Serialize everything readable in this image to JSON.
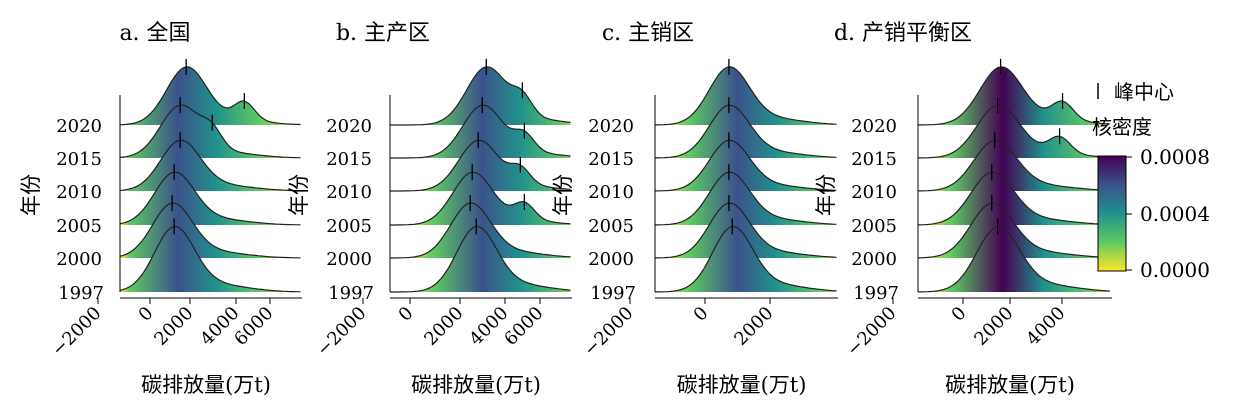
{
  "legend": {
    "peak_label": "峰中心",
    "colorbar_title": "核密度",
    "colorbar_ticks": [
      "0.0008",
      "0.0004",
      "0.0000"
    ],
    "colors": [
      "#fde725",
      "#5ec962",
      "#21918c",
      "#3b528b",
      "#440154"
    ]
  },
  "chart_data": [
    {
      "type": "ridgeline",
      "title": "a. 全国",
      "xlabel": "碳排放量(万t)",
      "ylabel": "年份",
      "xlim": [
        -2000,
        7000
      ],
      "xticks": [
        "−2000",
        "0",
        "2000",
        "4000",
        "6000"
      ],
      "yticks": [
        "1997",
        "2000",
        "2005",
        "2010",
        "2015",
        "2020"
      ],
      "series": [
        {
          "year": "1997",
          "peaks": [
            700
          ]
        },
        {
          "year": "2000",
          "peaks": [
            600
          ]
        },
        {
          "year": "2005",
          "peaks": [
            700
          ]
        },
        {
          "year": "2010",
          "peaks": [
            1000
          ]
        },
        {
          "year": "2015",
          "peaks": [
            1000,
            2600
          ]
        },
        {
          "year": "2020",
          "peaks": [
            1300,
            4200
          ]
        }
      ]
    },
    {
      "type": "ridgeline",
      "title": "b. 主产区",
      "xlabel": "碳排放量(万t)",
      "ylabel": "年份",
      "xlim": [
        -2000,
        7000
      ],
      "xticks": [
        "−2000",
        "0",
        "2000",
        "4000",
        "6000"
      ],
      "yticks": [
        "1997",
        "2000",
        "2005",
        "2010",
        "2015",
        "2020"
      ],
      "series": [
        {
          "year": "1997",
          "peaks": [
            2300
          ]
        },
        {
          "year": "2000",
          "peaks": [
            2000
          ]
        },
        {
          "year": "2005",
          "peaks": [
            2100,
            4700
          ]
        },
        {
          "year": "2010",
          "peaks": [
            2400,
            4500
          ]
        },
        {
          "year": "2015",
          "peaks": [
            2600,
            4700
          ]
        },
        {
          "year": "2020",
          "peaks": [
            2800,
            4600
          ]
        }
      ]
    },
    {
      "type": "ridgeline",
      "title": "c. 主销区",
      "xlabel": "碳排放量(万t)",
      "ylabel": "年份",
      "xlim": [
        -2000,
        3400
      ],
      "xticks": [
        "−2000",
        "0",
        "2000"
      ],
      "yticks": [
        "1997",
        "2000",
        "2005",
        "2010",
        "2015",
        "2020"
      ],
      "series": [
        {
          "year": "1997",
          "peaks": [
            300
          ]
        },
        {
          "year": "2000",
          "peaks": [
            200
          ]
        },
        {
          "year": "2005",
          "peaks": [
            200
          ]
        },
        {
          "year": "2010",
          "peaks": [
            200
          ]
        },
        {
          "year": "2015",
          "peaks": [
            200
          ]
        },
        {
          "year": "2020",
          "peaks": [
            200
          ]
        }
      ]
    },
    {
      "type": "ridgeline",
      "title": "d. 产销平衡区",
      "xlabel": "碳排放量(万t)",
      "ylabel": "年份",
      "xlim": [
        -2000,
        4500
      ],
      "xticks": [
        "−2000",
        "0",
        "2000",
        "4000"
      ],
      "yticks": [
        "1997",
        "2000",
        "2005",
        "2010",
        "2015",
        "2020"
      ],
      "series": [
        {
          "year": "1997",
          "peaks": [
            700
          ]
        },
        {
          "year": "2000",
          "peaks": [
            500
          ]
        },
        {
          "year": "2005",
          "peaks": [
            500
          ]
        },
        {
          "year": "2010",
          "peaks": [
            600
          ]
        },
        {
          "year": "2015",
          "peaks": [
            700,
            2800
          ]
        },
        {
          "year": "2020",
          "peaks": [
            800,
            2900
          ]
        }
      ]
    }
  ]
}
